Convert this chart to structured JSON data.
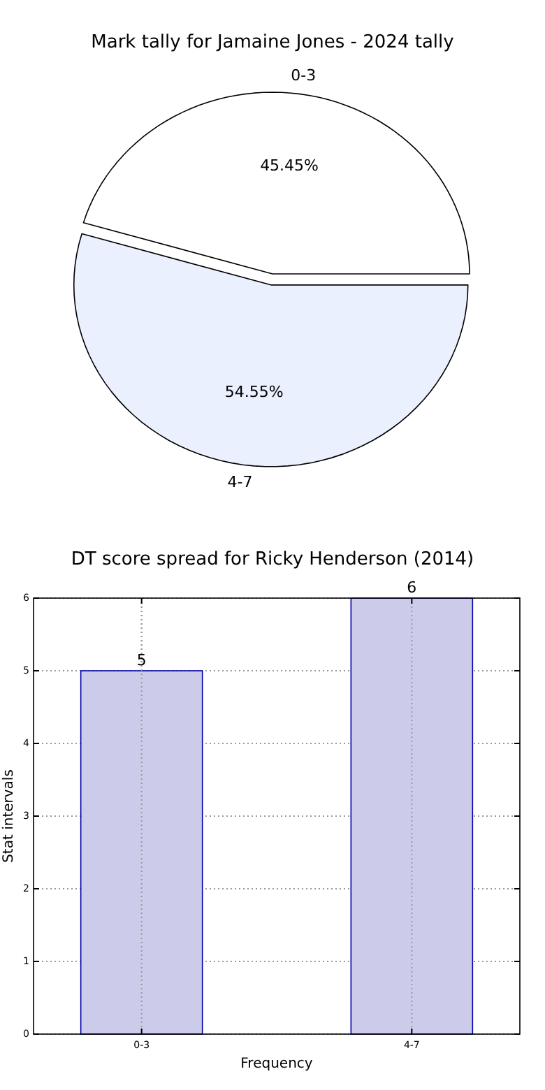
{
  "chart_data": [
    {
      "type": "pie",
      "title": "Mark tally for Jamaine Jones - 2024 tally",
      "categories": [
        "0-3",
        "4-7"
      ],
      "values": [
        45.45,
        54.55
      ],
      "colors": [
        "#ffffff",
        "#eaf0fd"
      ],
      "value_labels": [
        "45.45%",
        "54.55%"
      ]
    },
    {
      "type": "bar",
      "title": "DT score spread for Ricky Henderson (2014)",
      "xlabel": "Frequency",
      "ylabel": "Stat intervals",
      "categories": [
        "0-3",
        "4-7"
      ],
      "values": [
        5,
        6
      ],
      "color": "#ccccea",
      "ylim": [
        0,
        6
      ],
      "yticks": [
        0,
        1,
        2,
        3,
        4,
        5,
        6
      ],
      "grid": true,
      "data_labels": true
    }
  ]
}
